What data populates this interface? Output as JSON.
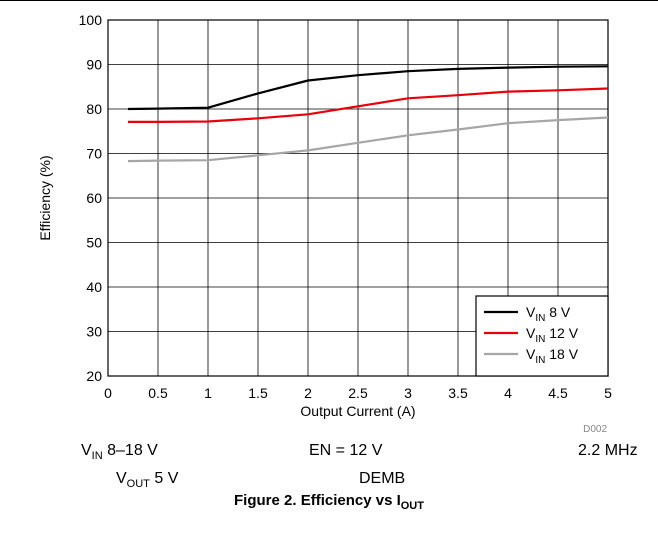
{
  "chart_data": {
    "type": "line",
    "xlabel": "Output Current (A)",
    "ylabel": "Efficiency (%)",
    "xlim": [
      0,
      5
    ],
    "ylim": [
      20,
      100
    ],
    "x_ticks": [
      "0",
      "0.5",
      "1",
      "1.5",
      "2",
      "2.5",
      "3",
      "3.5",
      "4",
      "4.5",
      "5"
    ],
    "y_ticks": [
      "20",
      "30",
      "40",
      "50",
      "60",
      "70",
      "80",
      "90",
      "100"
    ],
    "grid": true,
    "legend_position": "bottom-right",
    "series": [
      {
        "name": "VIN 8 V",
        "name_main": "V",
        "name_sub": "IN",
        "name_rest": " 8 V",
        "color": "#000000",
        "x": [
          0.2,
          0.5,
          1,
          1.5,
          2,
          2.5,
          3,
          3.5,
          4,
          4.5,
          5
        ],
        "y": [
          80,
          80.1,
          80.3,
          83.5,
          86.4,
          87.6,
          88.5,
          89,
          89.3,
          89.5,
          89.6
        ]
      },
      {
        "name": "VIN 12 V",
        "name_main": "V",
        "name_sub": "IN",
        "name_rest": " 12 V",
        "color": "#e8000b",
        "x": [
          0.2,
          0.5,
          1,
          1.5,
          2,
          2.5,
          3,
          3.5,
          4,
          4.5,
          5
        ],
        "y": [
          77.1,
          77.1,
          77.2,
          77.9,
          78.8,
          80.6,
          82.4,
          83.1,
          83.9,
          84.2,
          84.6
        ]
      },
      {
        "name": "VIN 18 V",
        "name_main": "V",
        "name_sub": "IN",
        "name_rest": " 18 V",
        "color": "#a6a6a6",
        "x": [
          0.2,
          0.5,
          1,
          1.5,
          2,
          2.5,
          3,
          3.5,
          4,
          4.5,
          5
        ],
        "y": [
          68.3,
          68.4,
          68.5,
          69.6,
          70.7,
          72.4,
          74.1,
          75.4,
          76.8,
          77.5,
          78.1
        ]
      }
    ]
  },
  "figure_code": "D002",
  "conditions": {
    "vin": {
      "main": "V",
      "sub": "IN",
      "rest": " 8–18 V"
    },
    "en": "EN = 12 V",
    "freq": "2.2 MHz",
    "vout": {
      "main": "V",
      "sub": "OUT",
      "rest": " 5 V"
    },
    "mode": "DEMB"
  },
  "caption": {
    "main": "Figure 2. Efficiency vs I",
    "sub": "OUT"
  }
}
